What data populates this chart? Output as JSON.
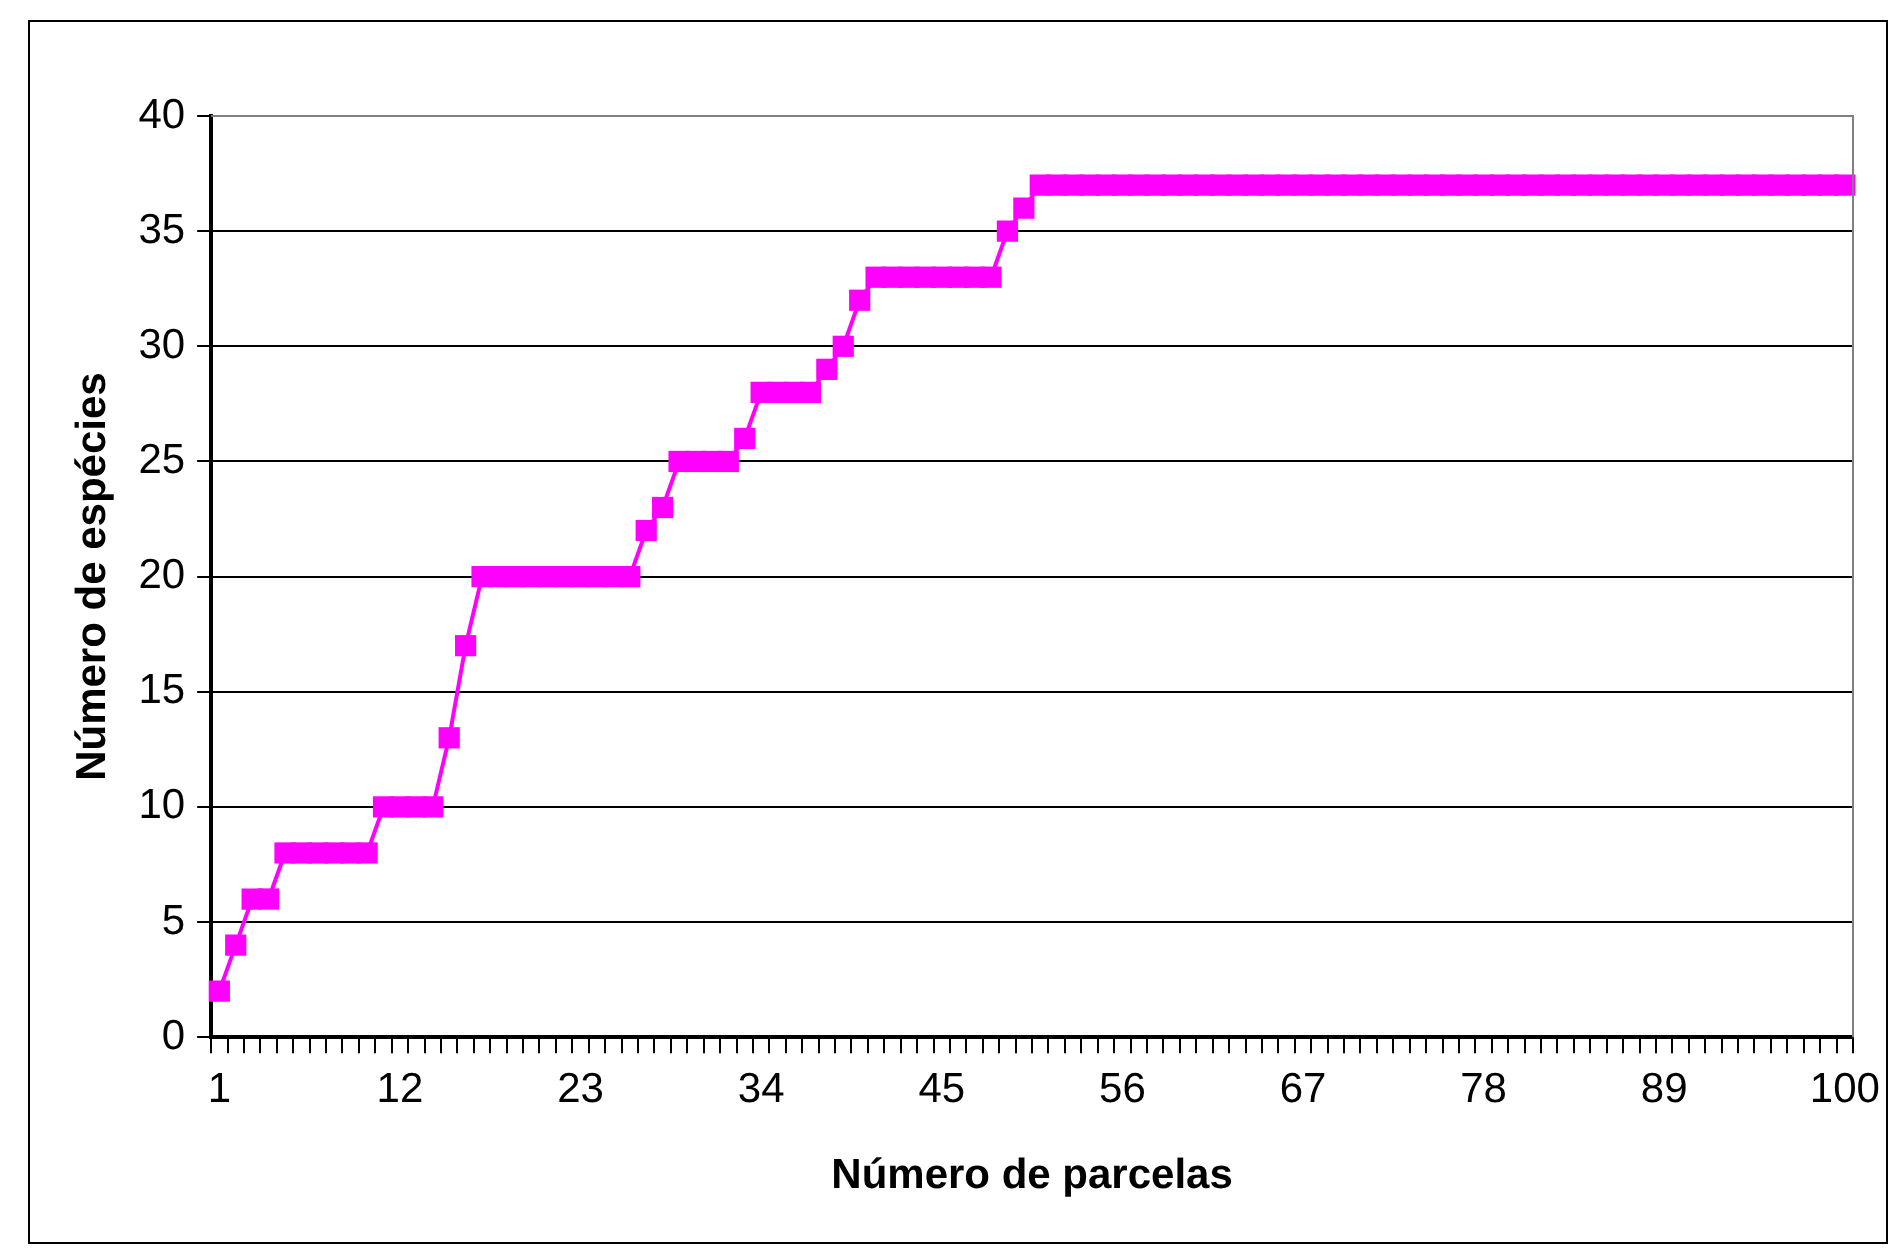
{
  "chart_data": {
    "type": "line",
    "xlabel": "Número de parcelas",
    "ylabel": "Número de espécies",
    "categories": [
      "1",
      null,
      null,
      null,
      null,
      null,
      null,
      null,
      null,
      null,
      null,
      "12",
      null,
      null,
      null,
      null,
      null,
      null,
      null,
      null,
      null,
      null,
      "23",
      null,
      null,
      null,
      null,
      null,
      null,
      null,
      null,
      null,
      null,
      "34",
      null,
      null,
      null,
      null,
      null,
      null,
      null,
      null,
      null,
      null,
      "45",
      null,
      null,
      null,
      null,
      null,
      null,
      null,
      null,
      null,
      null,
      "56",
      null,
      null,
      null,
      null,
      null,
      null,
      null,
      null,
      null,
      null,
      "67",
      null,
      null,
      null,
      null,
      null,
      null,
      null,
      null,
      null,
      null,
      "78",
      null,
      null,
      null,
      null,
      null,
      null,
      null,
      null,
      null,
      null,
      "89",
      null,
      null,
      null,
      null,
      null,
      null,
      null,
      null,
      null,
      null,
      "100"
    ],
    "series": [
      {
        "color": "#ff00ff",
        "values": [
          2,
          4,
          6,
          6,
          8,
          8,
          8,
          8,
          8,
          8,
          10,
          10,
          10,
          10,
          13,
          17,
          20,
          20,
          20,
          20,
          20,
          20,
          20,
          20,
          20,
          20,
          22,
          23,
          25,
          25,
          25,
          25,
          26,
          28,
          28,
          28,
          28,
          29,
          30,
          32,
          33,
          33,
          33,
          33,
          33,
          33,
          33,
          33,
          35,
          36,
          37,
          37,
          37,
          37,
          37,
          37,
          37,
          37,
          37,
          37,
          37,
          37,
          37,
          37,
          37,
          37,
          37,
          37,
          37,
          37,
          37,
          37,
          37,
          37,
          37,
          37,
          37,
          37,
          37,
          37,
          37,
          37,
          37,
          37,
          37,
          37,
          37,
          37,
          37,
          37,
          37,
          37,
          37,
          37,
          37,
          37,
          37,
          37,
          37,
          37
        ]
      }
    ],
    "ylim": [
      0,
      40
    ],
    "yticks": [
      0,
      5,
      10,
      15,
      20,
      25,
      30,
      35,
      40
    ],
    "grid": "y",
    "legend": false,
    "marker": "square",
    "line_style": "solid"
  }
}
